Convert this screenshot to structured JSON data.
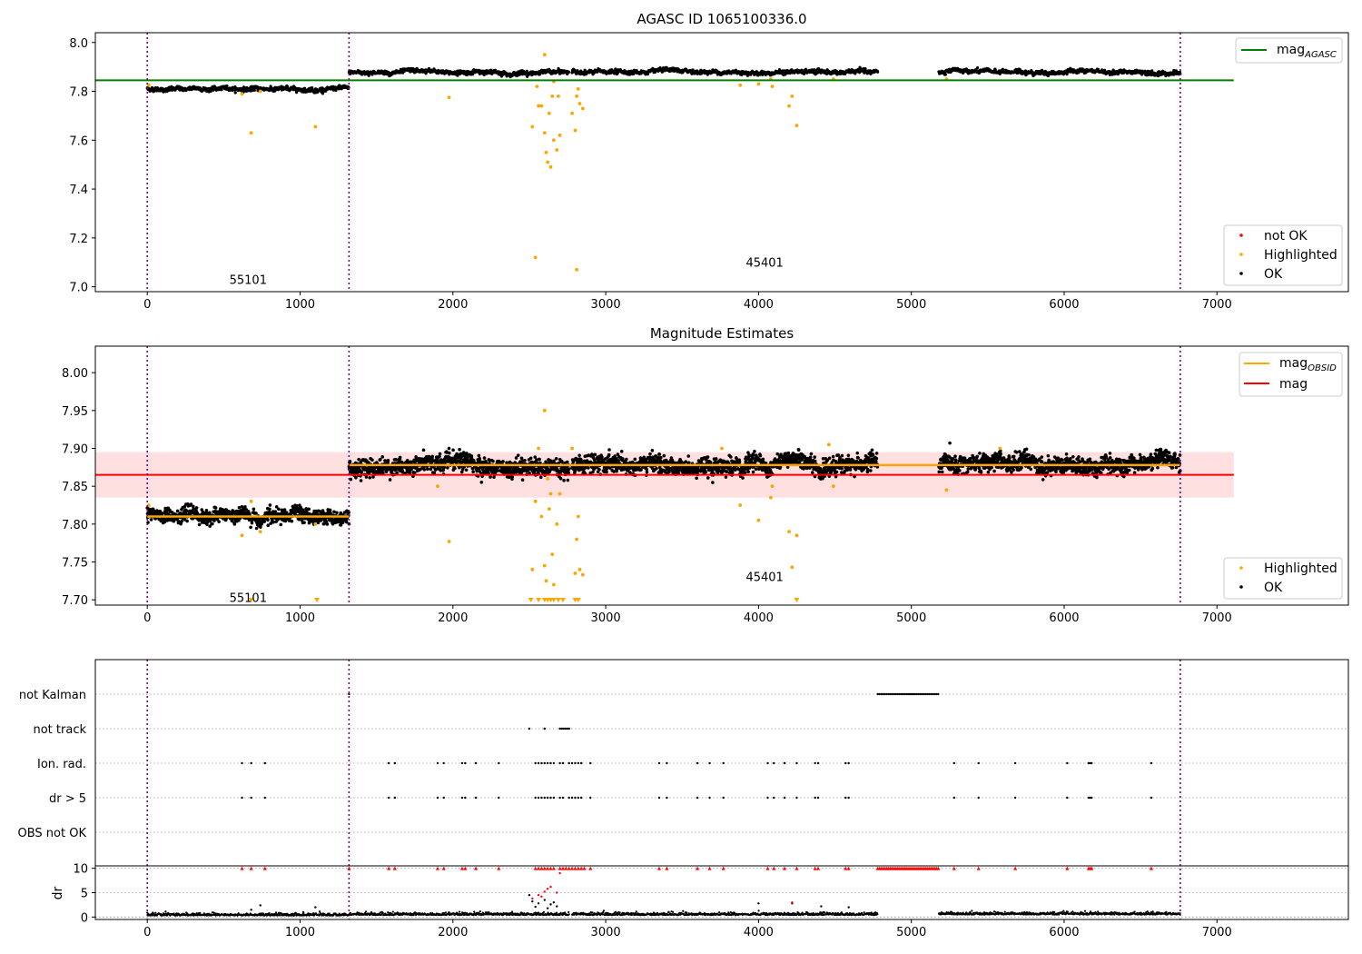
{
  "chart_data": [
    {
      "type": "scatter",
      "title": "AGASC ID 1065100336.0",
      "xlim": [
        -340,
        7860
      ],
      "ylim": [
        6.98,
        8.04
      ],
      "xticks": [
        0,
        1000,
        2000,
        3000,
        4000,
        5000,
        6000,
        7000
      ],
      "yticks": [
        7.0,
        7.2,
        7.4,
        7.6,
        7.8,
        8.0
      ],
      "ytick_labels": [
        "7.0",
        "7.2",
        "7.4",
        "7.6",
        "7.8",
        "8.0"
      ],
      "obsid_boundaries": [
        0,
        1320,
        6760
      ],
      "obsid_labels": [
        {
          "text": "55101",
          "x": 660,
          "y": 7.03
        },
        {
          "text": "45401",
          "x": 4040,
          "y": 7.1
        }
      ],
      "mag_agasc": 7.845,
      "mag_agasc_xrange": [
        -340,
        7110
      ],
      "segments": [
        {
          "x0": 0,
          "x1": 1320,
          "mag": 7.81,
          "noise": 0.004
        },
        {
          "x0": 1320,
          "x1": 2760,
          "mag": 7.878,
          "noise": 0.004
        },
        {
          "x0": 2780,
          "x1": 4780,
          "mag": 7.879,
          "noise": 0.004
        },
        {
          "x0": 5180,
          "x1": 6760,
          "mag": 7.879,
          "noise": 0.004
        }
      ],
      "highlighted": [
        [
          10,
          7.825
        ],
        [
          620,
          7.79
        ],
        [
          680,
          7.63
        ],
        [
          740,
          7.8
        ],
        [
          1100,
          7.655
        ],
        [
          1975,
          7.775
        ],
        [
          2520,
          7.655
        ],
        [
          2540,
          7.12
        ],
        [
          2550,
          7.82
        ],
        [
          2560,
          7.74
        ],
        [
          2580,
          7.74
        ],
        [
          2600,
          7.95
        ],
        [
          2600,
          7.63
        ],
        [
          2610,
          7.55
        ],
        [
          2620,
          7.51
        ],
        [
          2630,
          7.71
        ],
        [
          2640,
          7.49
        ],
        [
          2650,
          7.78
        ],
        [
          2660,
          7.6
        ],
        [
          2660,
          7.84
        ],
        [
          2680,
          7.56
        ],
        [
          2690,
          7.78
        ],
        [
          2700,
          7.62
        ],
        [
          2810,
          7.07
        ],
        [
          2780,
          7.71
        ],
        [
          2800,
          7.64
        ],
        [
          2810,
          7.78
        ],
        [
          2820,
          7.81
        ],
        [
          2830,
          7.75
        ],
        [
          2850,
          7.73
        ],
        [
          3880,
          7.825
        ],
        [
          4000,
          7.83
        ],
        [
          4080,
          7.85
        ],
        [
          4090,
          7.82
        ],
        [
          4200,
          7.74
        ],
        [
          4220,
          7.78
        ],
        [
          4250,
          7.66
        ],
        [
          4490,
          7.85
        ],
        [
          5230,
          7.85
        ]
      ],
      "legend_upper": [
        {
          "label": "mag",
          "subscript": "AGASC",
          "color": "#008000"
        }
      ],
      "legend_lower": [
        {
          "label": "not OK",
          "color": "#ff0000"
        },
        {
          "label": "Highlighted",
          "color": "#ffa500"
        },
        {
          "label": "OK",
          "color": "#000000"
        }
      ]
    },
    {
      "type": "scatter",
      "title": "Magnitude Estimates",
      "xlim": [
        -340,
        7860
      ],
      "ylim": [
        7.693,
        8.035
      ],
      "xticks": [
        0,
        1000,
        2000,
        3000,
        4000,
        5000,
        6000,
        7000
      ],
      "yticks": [
        7.7,
        7.75,
        7.8,
        7.85,
        7.9,
        7.95,
        8.0
      ],
      "ytick_labels": [
        "7.70",
        "7.75",
        "7.80",
        "7.85",
        "7.90",
        "7.95",
        "8.00"
      ],
      "obsid_boundaries": [
        0,
        1320,
        6760
      ],
      "obsid_labels": [
        {
          "text": "55101",
          "x": 660,
          "y": 7.703
        },
        {
          "text": "45401",
          "x": 4040,
          "y": 7.731
        }
      ],
      "mag": 7.865,
      "mag_band": [
        7.835,
        7.895
      ],
      "mag_xrange": [
        -340,
        7110
      ],
      "mag_obsid": [
        {
          "x0": 0,
          "x1": 1320,
          "value": 7.81
        },
        {
          "x0": 1320,
          "x1": 6760,
          "value": 7.878
        }
      ],
      "segments": [
        {
          "x0": 0,
          "x1": 1320,
          "mag": 7.81,
          "noise": 0.0045
        },
        {
          "x0": 1320,
          "x1": 2760,
          "mag": 7.877,
          "noise": 0.0055
        },
        {
          "x0": 2780,
          "x1": 4780,
          "mag": 7.878,
          "noise": 0.0055
        },
        {
          "x0": 5180,
          "x1": 6760,
          "mag": 7.879,
          "noise": 0.0055
        }
      ],
      "highlighted": [
        [
          10,
          7.825
        ],
        [
          620,
          7.785
        ],
        [
          680,
          7.83
        ],
        [
          740,
          7.79
        ],
        [
          1100,
          7.8
        ],
        [
          1900,
          7.85
        ],
        [
          1975,
          7.777
        ],
        [
          2520,
          7.74
        ],
        [
          2540,
          7.83
        ],
        [
          2560,
          7.9
        ],
        [
          2580,
          7.81
        ],
        [
          2600,
          7.95
        ],
        [
          2600,
          7.745
        ],
        [
          2610,
          7.725
        ],
        [
          2620,
          7.86
        ],
        [
          2630,
          7.82
        ],
        [
          2640,
          7.84
        ],
        [
          2650,
          7.76
        ],
        [
          2660,
          7.72
        ],
        [
          2680,
          7.8
        ],
        [
          2700,
          7.84
        ],
        [
          2780,
          7.9
        ],
        [
          2800,
          7.735
        ],
        [
          2810,
          7.78
        ],
        [
          2820,
          7.81
        ],
        [
          2830,
          7.74
        ],
        [
          2850,
          7.733
        ],
        [
          3760,
          7.9
        ],
        [
          3880,
          7.825
        ],
        [
          4000,
          7.805
        ],
        [
          4080,
          7.835
        ],
        [
          4090,
          7.85
        ],
        [
          4200,
          7.79
        ],
        [
          4220,
          7.743
        ],
        [
          4250,
          7.785
        ],
        [
          4460,
          7.905
        ],
        [
          4490,
          7.85
        ],
        [
          5230,
          7.845
        ],
        [
          5580,
          7.9
        ]
      ],
      "clipped_below": [
        680,
        1110,
        2510,
        2560,
        2600,
        2620,
        2640,
        2660,
        2690,
        2720,
        2800,
        2820,
        4250
      ],
      "legend_upper": [
        {
          "label": "mag",
          "subscript": "OBSID",
          "color": "#ffa500"
        },
        {
          "label": "mag",
          "subscript": "",
          "color": "#ff0000"
        }
      ],
      "legend_lower": [
        {
          "label": "Highlighted",
          "color": "#ffa500"
        },
        {
          "label": "OK",
          "color": "#000000"
        }
      ]
    },
    {
      "type": "scatter",
      "xlim": [
        -340,
        7860
      ],
      "obsid_boundaries": [
        0,
        1320,
        6760
      ],
      "flag_rows": [
        {
          "label": "not Kalman",
          "x": [
            1320
          ],
          "ranges": [
            [
              4780,
              5180
            ]
          ]
        },
        {
          "label": "not track",
          "x": [
            2500,
            2600
          ],
          "ranges": [
            [
              2700,
              2760
            ]
          ]
        },
        {
          "label": "Ion. rad.",
          "x": [
            620,
            680,
            770,
            1580,
            1620,
            1900,
            1940,
            2060,
            2080,
            2150,
            2300,
            2540,
            2560,
            2580,
            2600,
            2620,
            2640,
            2660,
            2700,
            2720,
            2760,
            2780,
            2800,
            2820,
            2840,
            2900,
            3350,
            3400,
            3600,
            3680,
            3770,
            4060,
            4100,
            4170,
            4250,
            4370,
            4390,
            4570,
            4590,
            5280,
            5440,
            5680,
            6020,
            6160,
            6170,
            6180,
            6570
          ]
        },
        {
          "label": "dr > 5",
          "x": [
            620,
            680,
            770,
            1580,
            1620,
            1900,
            1940,
            2060,
            2080,
            2150,
            2300,
            2540,
            2560,
            2580,
            2600,
            2620,
            2640,
            2660,
            2700,
            2720,
            2760,
            2780,
            2800,
            2820,
            2840,
            2900,
            3350,
            3400,
            3600,
            3680,
            3770,
            4060,
            4100,
            4170,
            4250,
            4370,
            4390,
            4570,
            4590,
            5280,
            5440,
            5680,
            6020,
            6160,
            6170,
            6180,
            6570
          ]
        },
        {
          "label": "OBS not OK",
          "x": []
        }
      ],
      "dr": {
        "ylabel": "dr",
        "ylim": [
          -0.5,
          10.5
        ],
        "yticks": [
          0,
          5,
          10
        ],
        "ytick_labels": [
          "0",
          "5",
          "10"
        ],
        "segments": [
          {
            "x0": 0,
            "x1": 1320,
            "level": 0.3
          },
          {
            "x0": 1320,
            "x1": 2760,
            "level": 0.4
          },
          {
            "x0": 2780,
            "x1": 4780,
            "level": 0.4
          },
          {
            "x0": 5180,
            "x1": 6760,
            "level": 0.5
          }
        ],
        "outliers": [
          [
            680,
            1.5
          ],
          [
            740,
            2.4
          ],
          [
            1100,
            2.0
          ],
          [
            2500,
            4.5
          ],
          [
            2520,
            3.2
          ],
          [
            2540,
            2.1
          ],
          [
            2560,
            2.8
          ],
          [
            2600,
            3.5
          ],
          [
            2620,
            1.8
          ],
          [
            2640,
            2.6
          ],
          [
            2660,
            3.0
          ],
          [
            2680,
            2.2
          ],
          [
            4000,
            2.8
          ],
          [
            4220,
            2.8
          ],
          [
            4410,
            2.2
          ],
          [
            4590,
            2.0
          ]
        ],
        "red_points": [
          [
            2520,
            3.8
          ],
          [
            2560,
            4.5
          ],
          [
            2580,
            4.2
          ],
          [
            2600,
            5.2
          ],
          [
            2620,
            5.8
          ],
          [
            2640,
            6.2
          ],
          [
            2680,
            5.0
          ],
          [
            2700,
            9.0
          ],
          [
            4220,
            3.0
          ]
        ],
        "clipped_at_10": [
          620,
          680,
          770,
          1320,
          1580,
          1620,
          1900,
          1940,
          2060,
          2080,
          2150,
          2300,
          2540,
          2560,
          2580,
          2600,
          2620,
          2640,
          2660,
          2700,
          2720,
          2740,
          2760,
          2780,
          2800,
          2820,
          2840,
          2860,
          2900,
          3350,
          3400,
          3600,
          3680,
          3770,
          4060,
          4100,
          4170,
          4250,
          4370,
          4390,
          4570,
          4590,
          5280,
          5440,
          5680,
          6020,
          6160,
          6170,
          6180,
          6570
        ],
        "clipped_range_at_10": [
          4780,
          5180
        ]
      },
      "xticks": [
        0,
        1000,
        2000,
        3000,
        4000,
        5000,
        6000,
        7000
      ]
    }
  ]
}
